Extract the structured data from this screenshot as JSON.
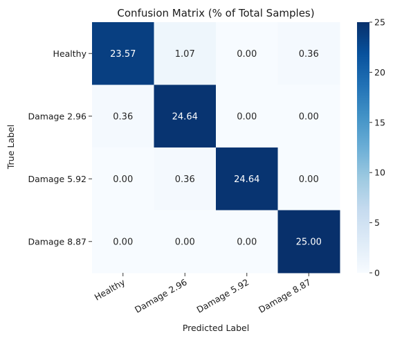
{
  "chart_data": {
    "type": "heatmap",
    "title": "Confusion Matrix (% of Total Samples)",
    "xlabel": "Predicted Label",
    "ylabel": "True Label",
    "x_categories": [
      "Healthy",
      "Damage 2.96",
      "Damage 5.92",
      "Damage 8.87"
    ],
    "y_categories": [
      "Healthy",
      "Damage 2.96",
      "Damage 5.92",
      "Damage 8.87"
    ],
    "values": [
      [
        23.57,
        1.07,
        0.0,
        0.36
      ],
      [
        0.36,
        24.64,
        0.0,
        0.0
      ],
      [
        0.0,
        0.36,
        24.64,
        0.0
      ],
      [
        0.0,
        0.0,
        0.0,
        25.0
      ]
    ],
    "value_format": "2 decimals",
    "colormap": "Blues",
    "colorbar": {
      "range": [
        0,
        25
      ],
      "ticks": [
        0,
        5,
        10,
        15,
        20,
        25
      ]
    }
  }
}
